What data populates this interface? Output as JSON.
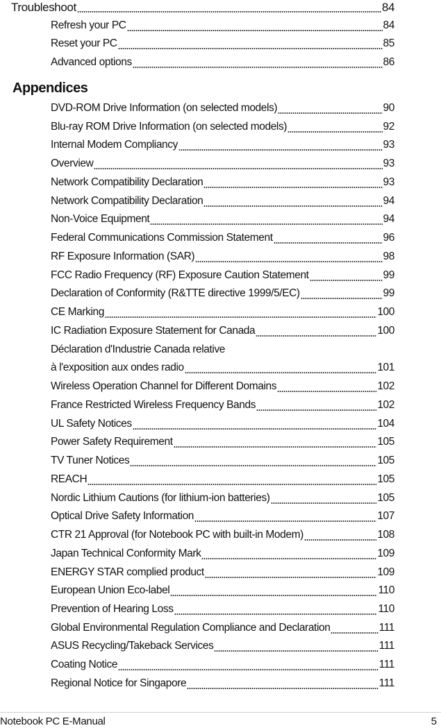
{
  "sections": [
    {
      "level": 1,
      "title": "Troubleshoot",
      "page": "84"
    },
    {
      "level": 2,
      "title": "Refresh your PC",
      "page": "84"
    },
    {
      "level": 2,
      "title": "Reset your PC",
      "page": "85"
    },
    {
      "level": 2,
      "title": "Advanced options",
      "page": "86"
    }
  ],
  "appendices_heading": "Appendices",
  "appendices": [
    {
      "title": "DVD-ROM Drive Information (on selected models)",
      "page": "90"
    },
    {
      "title": "Blu-ray ROM Drive Information (on selected models)",
      "page": "92"
    },
    {
      "title": "Internal Modem Compliancy",
      "page": "93"
    },
    {
      "title": "Overview",
      "page": "93"
    },
    {
      "title": "Network Compatibility Declaration",
      "page": "93"
    },
    {
      "title": "Network Compatibility Declaration",
      "page": "94"
    },
    {
      "title": "Non-Voice Equipment",
      "page": "94"
    },
    {
      "title": "Federal Communications Commission Statement",
      "page": "96"
    },
    {
      "title": "RF Exposure Information (SAR)",
      "page": "98"
    },
    {
      "title": "FCC Radio Frequency (RF) Exposure Caution Statement",
      "page": "99"
    },
    {
      "title": "Declaration of Conformity (R&TTE directive 1999/5/EC)",
      "page": "99"
    },
    {
      "title": "CE Marking",
      "page": "100"
    },
    {
      "title": "IC Radiation Exposure Statement for Canada",
      "page": "100"
    },
    {
      "title": "Déclaration d'Industrie Canada relative",
      "page": ""
    },
    {
      "title": "à l'exposition aux ondes radio",
      "page": "101"
    },
    {
      "title": "Wireless Operation Channel for Different Domains",
      "page": "102"
    },
    {
      "title": "France Restricted Wireless Frequency Bands",
      "page": "102"
    },
    {
      "title": "UL Safety Notices",
      "page": "104"
    },
    {
      "title": "Power Safety Requirement",
      "page": "105"
    },
    {
      "title": "TV Tuner Notices",
      "page": "105"
    },
    {
      "title": "REACH",
      "page": "105"
    },
    {
      "title": "Nordic Lithium Cautions (for lithium-ion batteries)",
      "page": "105"
    },
    {
      "title": "Optical Drive Safety Information",
      "page": "107"
    },
    {
      "title": "CTR 21 Approval (for Notebook PC with built-in Modem)",
      "page": "108"
    },
    {
      "title": "Japan Technical Conformity Mark",
      "page": "109"
    },
    {
      "title": "ENERGY STAR complied product",
      "page": "109"
    },
    {
      "title": "European Union Eco-label",
      "page": "110"
    },
    {
      "title": "Prevention of Hearing Loss",
      "page": "110"
    },
    {
      "title": "Global Environmental Regulation Compliance and Declaration",
      "page": "111"
    },
    {
      "title": "ASUS Recycling/Takeback Services",
      "page": "111"
    },
    {
      "title": "Coating Notice",
      "page": "111"
    },
    {
      "title": "Regional Notice for Singapore",
      "page": "111"
    }
  ],
  "footer": {
    "title": "Notebook PC E-Manual",
    "page": "5"
  }
}
